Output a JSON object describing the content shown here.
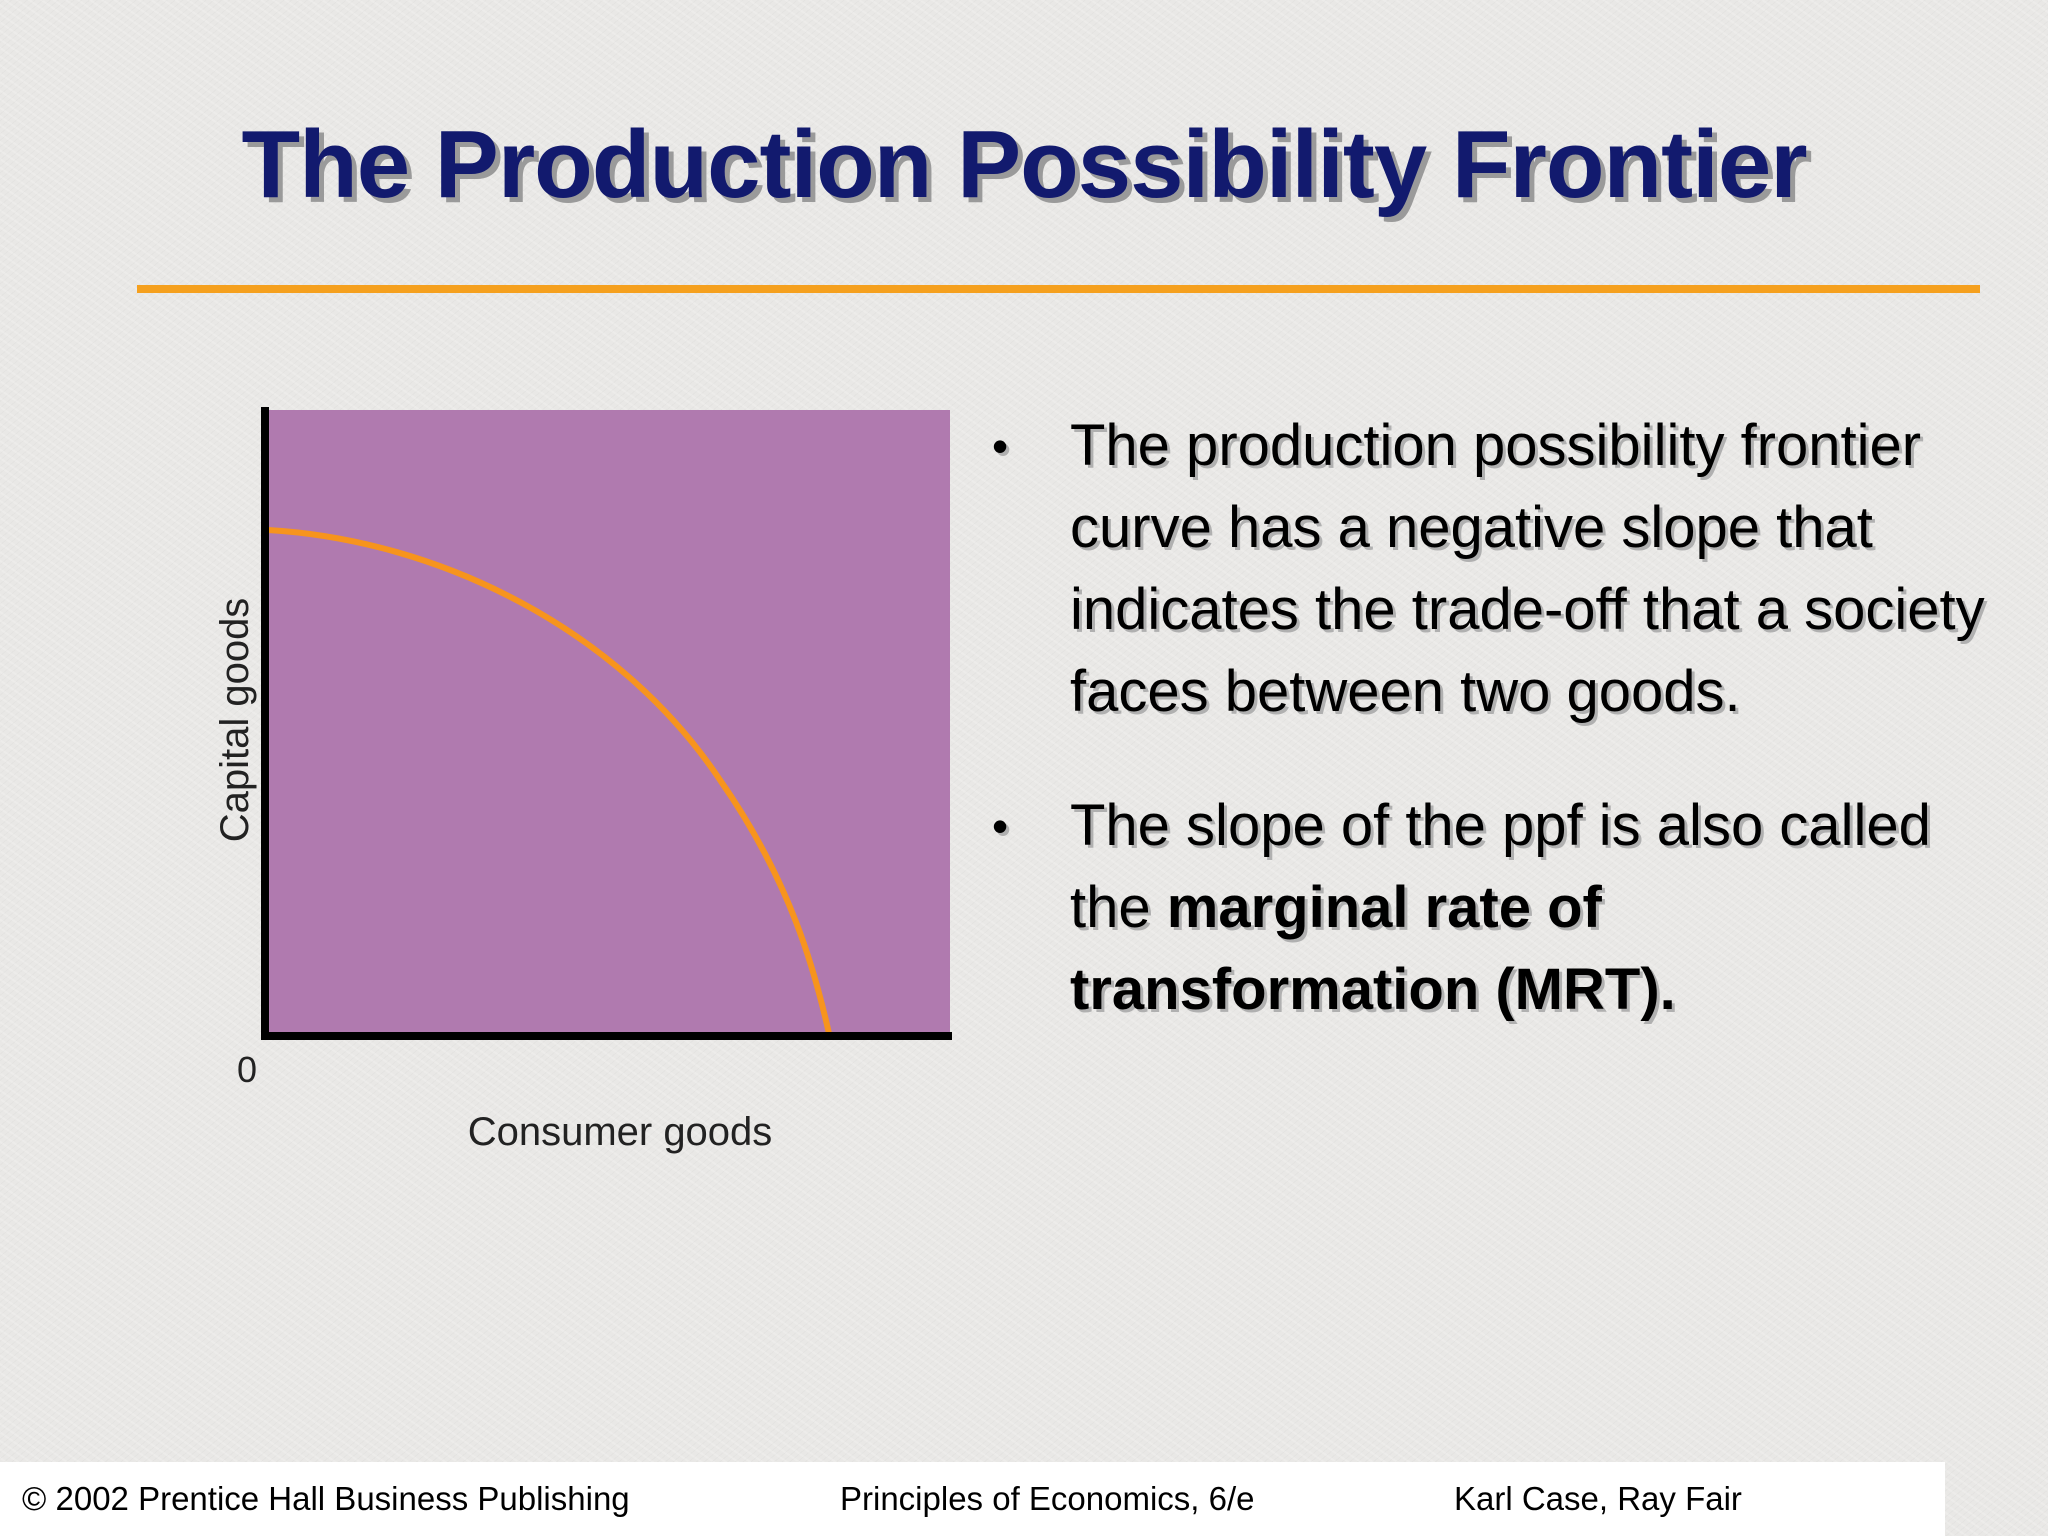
{
  "slide": {
    "title": "The Production Possibility Frontier"
  },
  "diagram": {
    "origin_label": "0",
    "xlabel": "Consumer goods",
    "ylabel": "Capital goods",
    "colors": {
      "plot_background": "#b07aaf",
      "curve": "#f7941d",
      "axes": "#000000"
    }
  },
  "bullets": [
    {
      "text": "The production possibility frontier curve has a negative slope that indicates the trade-off that a society faces between two goods."
    },
    {
      "text": "The slope of the ppf is also called the ",
      "bold": "marginal rate of transformation (MRT)."
    }
  ],
  "footer": {
    "left": "© 2002 Prentice Hall Business Publishing",
    "center": "Principles of Economics, 6/e",
    "right": "Karl Case, Ray Fair"
  },
  "colors": {
    "title": "#121a6e",
    "accent_rule": "#f5a01e"
  }
}
